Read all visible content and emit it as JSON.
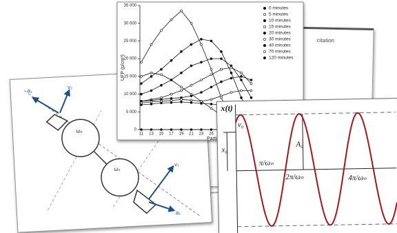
{
  "chart_data": {
    "type": "line",
    "y_label": "UFP (p/cm³)",
    "x_label": "Particl",
    "categories": [
      "11",
      "13",
      "15",
      "17",
      "19",
      "21",
      "23",
      "26",
      "31",
      null,
      null,
      null
    ],
    "ylim": [
      0,
      35000
    ],
    "yticks": [
      {
        "value": 0,
        "label": "0"
      },
      {
        "value": 5000,
        "label": "5 000"
      },
      {
        "value": 10000,
        "label": "10 000"
      },
      {
        "value": 15000,
        "label": "15 000"
      },
      {
        "value": 20000,
        "label": "20 000"
      },
      {
        "value": 25000,
        "label": "25 000"
      },
      {
        "value": 30000,
        "label": "30 000"
      },
      {
        "value": 35000,
        "label": "35 000"
      }
    ],
    "grid": false,
    "legend": "top-right",
    "series": [
      {
        "name": "0 minutes",
        "color": "#111111",
        "values": [
          0,
          0,
          0,
          0,
          0,
          0,
          0,
          0,
          0,
          0,
          0,
          0
        ]
      },
      {
        "name": "5 minutes",
        "color": "#111111",
        "values": [
          19000,
          24000,
          28000,
          31000,
          33500,
          30000,
          24000,
          17000,
          9000,
          3000,
          500,
          0
        ]
      },
      {
        "name": "10 minutes",
        "color": "#111111",
        "values": [
          13000,
          15000,
          17000,
          19500,
          22000,
          24000,
          25500,
          25000,
          22000,
          16000,
          9000,
          4000
        ]
      },
      {
        "name": "15 minutes",
        "color": "#111111",
        "values": [
          15000,
          16000,
          15500,
          14000,
          12000,
          10000,
          8000,
          6000,
          4000,
          2500,
          1500,
          1000
        ]
      },
      {
        "name": "20 minutes",
        "color": "#111111",
        "values": [
          10000,
          11000,
          12500,
          14000,
          16000,
          18000,
          19000,
          20000,
          20000,
          18000,
          14000,
          9000
        ]
      },
      {
        "name": "30 minutes",
        "color": "#111111",
        "values": [
          8000,
          8500,
          9000,
          10000,
          11000,
          12500,
          14000,
          15500,
          17000,
          17500,
          16000,
          13000
        ]
      },
      {
        "name": "40 minutes",
        "color": "#111111",
        "values": [
          8000,
          8200,
          8500,
          8800,
          9000,
          9500,
          10500,
          12000,
          13500,
          14500,
          15000,
          14000
        ]
      },
      {
        "name": "70 minutes",
        "color": "#111111",
        "values": [
          7500,
          7800,
          8000,
          8200,
          8500,
          8300,
          8000,
          8500,
          9500,
          10500,
          11000,
          11000
        ]
      },
      {
        "name": "120 minutes",
        "color": "#111111",
        "values": [
          7000,
          7200,
          7500,
          7600,
          7800,
          7600,
          7400,
          7200,
          7000,
          7200,
          7500,
          7500
        ]
      }
    ]
  },
  "document": {
    "text": "citation"
  },
  "mechanism_diagram": {
    "a2": "a₂",
    "v2": "v₂",
    "w2": "ω₂",
    "w1": "ω₁",
    "v1": "v₁",
    "a1": "a₁"
  },
  "oscillation_diagram": {
    "axis": "x(t)",
    "v0": "v₀",
    "x0": "x₀",
    "amplitude": "A₀",
    "t1": "π/ωₙ",
    "t2": "2π/ωₙ",
    "t4": "4π/ωₙ"
  }
}
